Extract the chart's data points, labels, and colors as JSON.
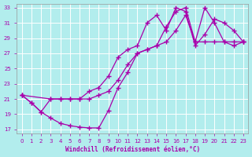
{
  "xlabel": "Windchill (Refroidissement éolien,°C)",
  "xlim": [
    -0.5,
    23.5
  ],
  "ylim": [
    16.5,
    33.5
  ],
  "xticks": [
    0,
    1,
    2,
    3,
    4,
    5,
    6,
    7,
    8,
    9,
    10,
    11,
    12,
    13,
    14,
    15,
    16,
    17,
    18,
    19,
    20,
    21,
    22,
    23
  ],
  "yticks": [
    17,
    19,
    21,
    23,
    25,
    27,
    29,
    31,
    33
  ],
  "bg_color": "#b2eded",
  "grid_color": "#ffffff",
  "line_color": "#aa00aa",
  "line_top_x": [
    0,
    1,
    2,
    3,
    4,
    5,
    6,
    7,
    8,
    9,
    10,
    11,
    12,
    13,
    14,
    15,
    16,
    17,
    18,
    19,
    20,
    21,
    22,
    23
  ],
  "line_top_y": [
    21.5,
    20.5,
    19.3,
    21.0,
    21.0,
    21.0,
    21.0,
    22.0,
    22.5,
    24.0,
    26.5,
    27.5,
    28.0,
    31.0,
    32.0,
    30.0,
    33.0,
    32.5,
    28.0,
    29.5,
    31.5,
    31.0,
    30.0,
    28.5
  ],
  "line_bottom_x": [
    0,
    1,
    2,
    3,
    4,
    5,
    6,
    7,
    8,
    9,
    10,
    11,
    12,
    13,
    14,
    15,
    16,
    17,
    18,
    19,
    20,
    21,
    22,
    23
  ],
  "line_bottom_y": [
    21.5,
    20.5,
    19.3,
    18.5,
    17.8,
    17.5,
    17.3,
    17.2,
    17.2,
    19.5,
    22.5,
    24.5,
    27.0,
    27.5,
    28.0,
    30.5,
    32.5,
    33.0,
    28.5,
    33.0,
    31.0,
    28.5,
    28.0,
    28.5
  ],
  "line_diag_x": [
    0,
    3,
    4,
    5,
    6,
    7,
    8,
    9,
    10,
    11,
    12,
    13,
    14,
    15,
    16,
    17,
    18,
    19,
    20,
    21,
    22,
    23
  ],
  "line_diag_y": [
    21.5,
    21.0,
    21.0,
    21.0,
    21.0,
    21.0,
    21.5,
    22.0,
    23.5,
    25.5,
    27.0,
    27.5,
    28.0,
    28.5,
    30.0,
    32.0,
    28.5,
    28.5,
    28.5,
    28.5,
    28.5,
    28.5
  ]
}
